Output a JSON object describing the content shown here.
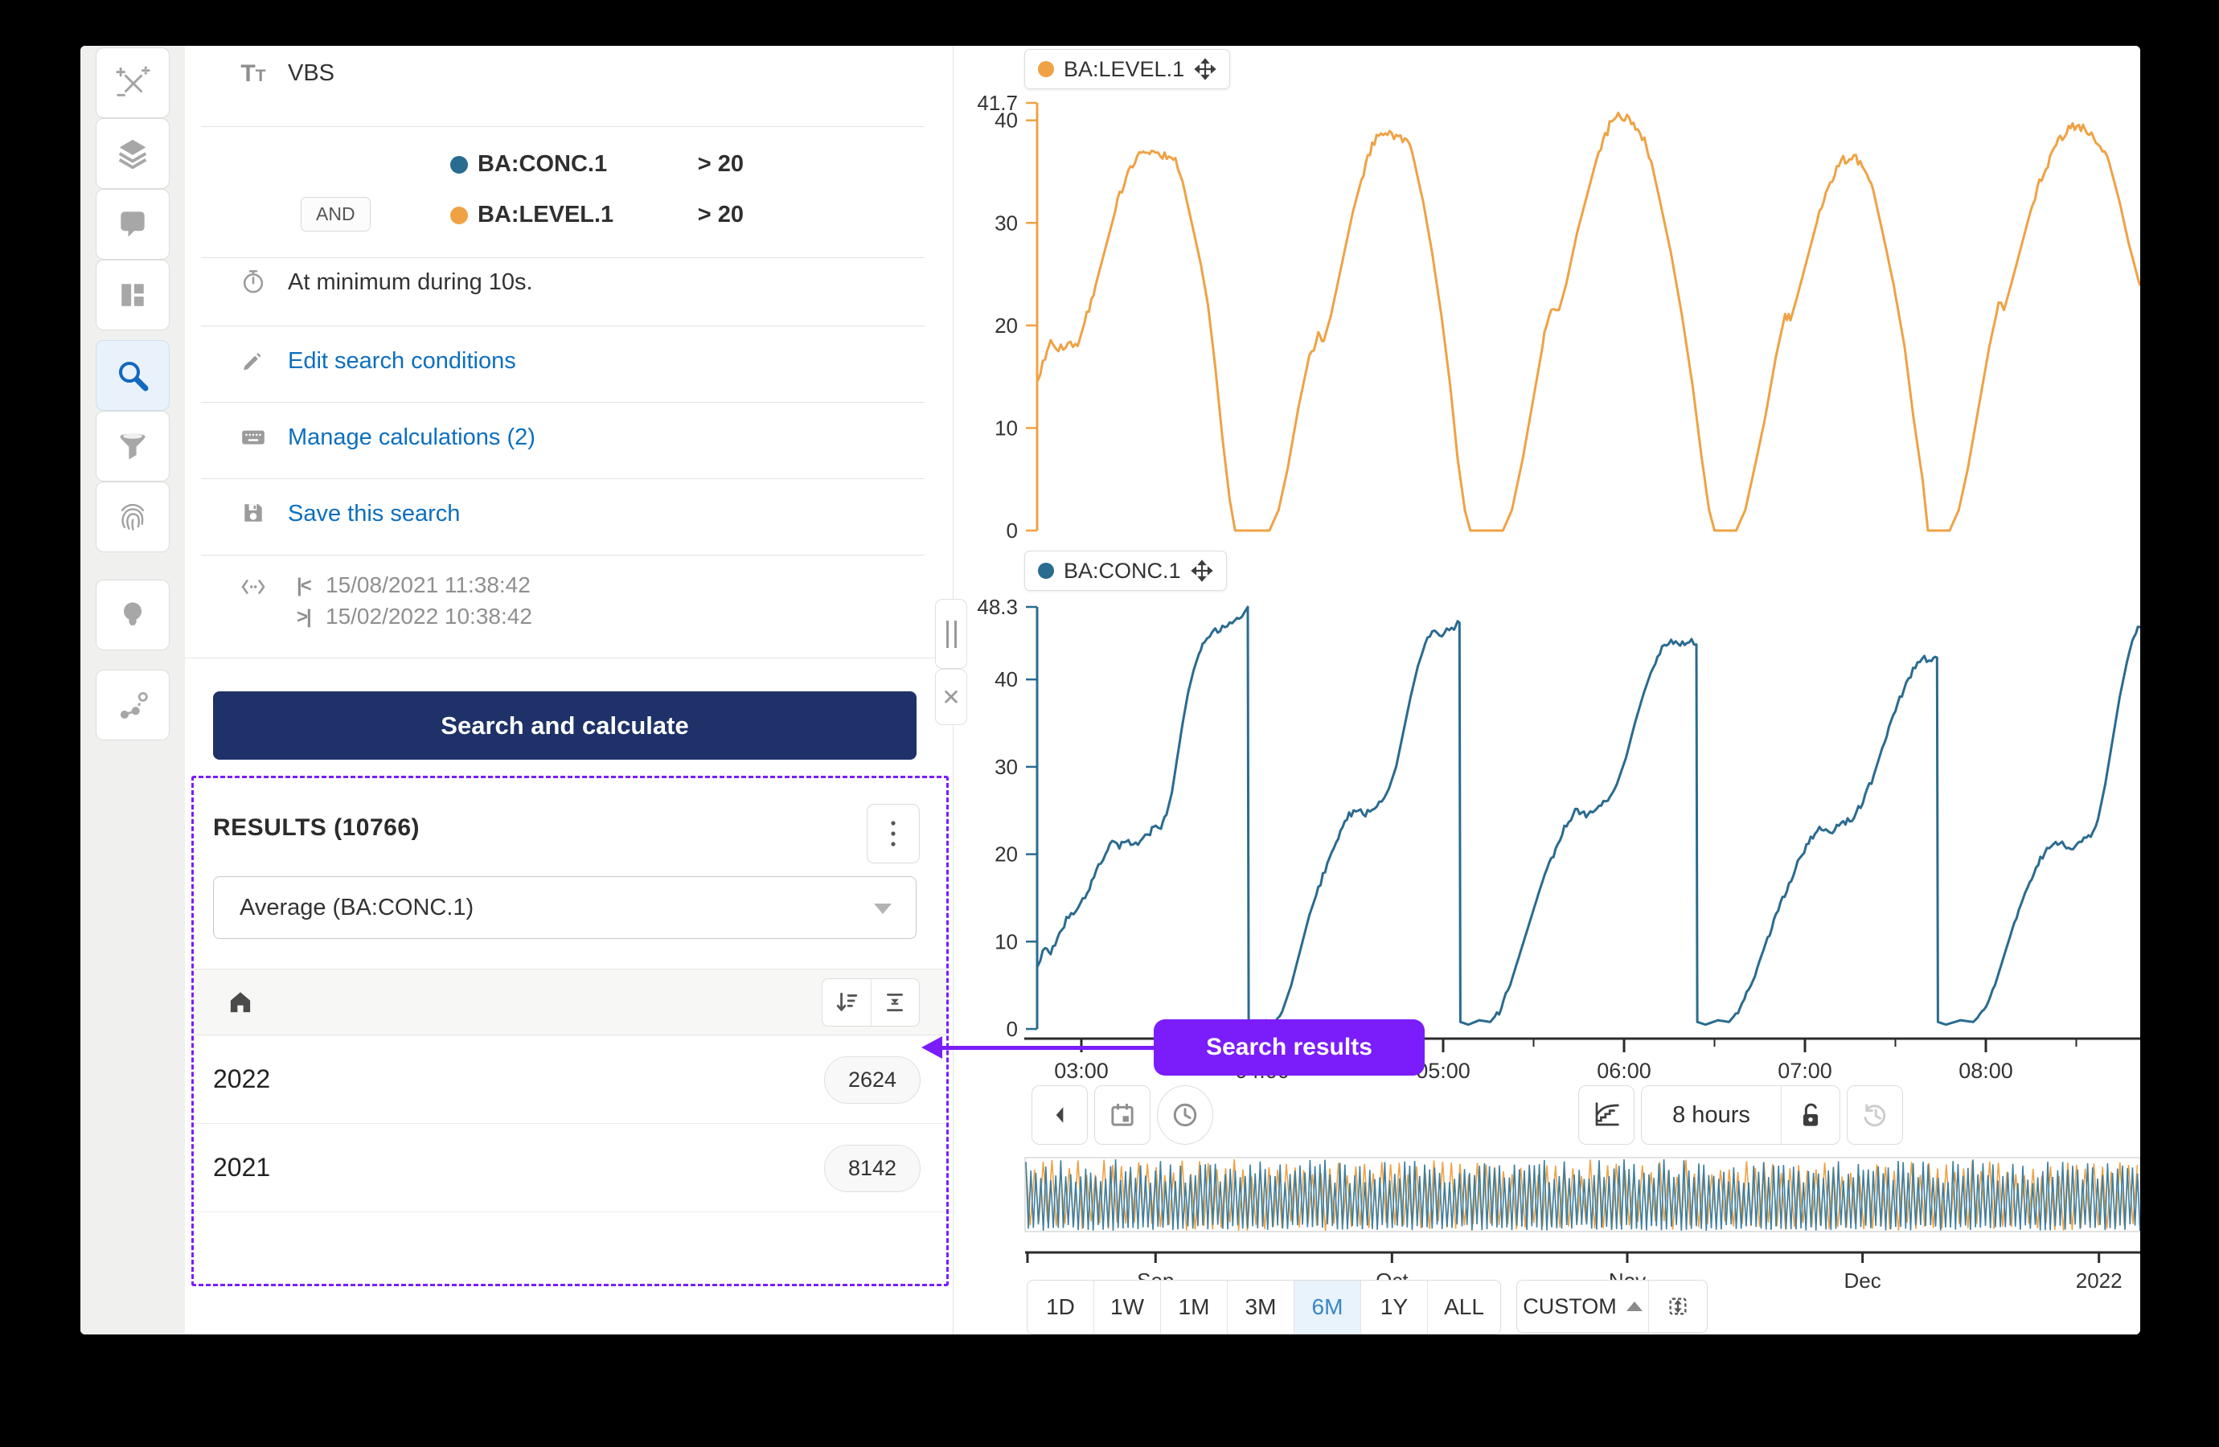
{
  "sidebar": {
    "items": [
      {
        "icon": "formula-icon",
        "active": false
      },
      {
        "icon": "layers-icon",
        "active": false
      },
      {
        "icon": "comment-icon",
        "active": false
      },
      {
        "icon": "dashboard-icon",
        "active": false
      },
      {
        "icon": "search-icon",
        "active": true
      },
      {
        "icon": "filter-icon",
        "active": false
      },
      {
        "icon": "fingerprint-icon",
        "active": false
      },
      {
        "icon": "lightbulb-icon",
        "active": false
      },
      {
        "icon": "node-graph-icon",
        "active": false
      }
    ]
  },
  "search_panel": {
    "query_name": "VBS",
    "conditions": [
      {
        "logic": "",
        "tag": "BA:CONC.1",
        "color": "#2a6b90",
        "condition": "> 20"
      },
      {
        "logic": "AND",
        "tag": "BA:LEVEL.1",
        "color": "#efa244",
        "condition": "> 20"
      }
    ],
    "duration_text": "At minimum during 10s.",
    "links": {
      "edit": "Edit search conditions",
      "manage": "Manage calculations (2)",
      "save": "Save this search"
    },
    "time_range": {
      "start": "15/08/2021 11:38:42",
      "end": "15/02/2022 10:38:42"
    },
    "search_button_label": "Search and calculate",
    "results": {
      "title": "RESULTS (10766)",
      "aggregation_selected": "Average (BA:CONC.1)",
      "rows": [
        {
          "label": "2022",
          "count": "2624"
        },
        {
          "label": "2021",
          "count": "8142"
        }
      ]
    }
  },
  "annotation": {
    "label": "Search results",
    "color": "#7b1dfa"
  },
  "toolbar": {
    "visible_span_label": "8 hours"
  },
  "timebar": {
    "presets": [
      "1D",
      "1W",
      "1M",
      "3M",
      "6M",
      "1Y",
      "ALL"
    ],
    "selected_preset": "6M",
    "custom_label": "CUSTOM"
  },
  "chart_data": {
    "type": "line",
    "time_axis": {
      "ticks": [
        "03:00",
        "04:00",
        "05:00",
        "06:00",
        "07:00",
        "08:00"
      ],
      "hours": [
        3,
        4,
        5,
        6,
        7,
        8
      ],
      "note": "x axis is time of day; visible window about 02:45 to 08:50"
    },
    "panels": [
      {
        "name": "BA:LEVEL.1",
        "color": "#efa244",
        "ylim": [
          0,
          41.7
        ],
        "yticks": [
          0,
          10,
          20,
          30,
          40
        ],
        "ymax_label": "41.7",
        "noise": 0.9,
        "points": [
          [
            2.76,
            15
          ],
          [
            2.8,
            17
          ],
          [
            2.83,
            18.5
          ],
          [
            2.86,
            17.5
          ],
          [
            2.9,
            18
          ],
          [
            2.94,
            18.5
          ],
          [
            2.98,
            18
          ],
          [
            3.03,
            21
          ],
          [
            3.08,
            24
          ],
          [
            3.14,
            28
          ],
          [
            3.2,
            32
          ],
          [
            3.26,
            35
          ],
          [
            3.32,
            36.5
          ],
          [
            3.4,
            37
          ],
          [
            3.46,
            36.5
          ],
          [
            3.52,
            36
          ],
          [
            3.56,
            34
          ],
          [
            3.61,
            30
          ],
          [
            3.66,
            26
          ],
          [
            3.7,
            22
          ],
          [
            3.74,
            16
          ],
          [
            3.78,
            9
          ],
          [
            3.82,
            3
          ],
          [
            3.85,
            0
          ],
          [
            4.04,
            0
          ],
          [
            4.09,
            2
          ],
          [
            4.14,
            6
          ],
          [
            4.2,
            12
          ],
          [
            4.26,
            17
          ],
          [
            4.31,
            19
          ],
          [
            4.34,
            18.5
          ],
          [
            4.38,
            21
          ],
          [
            4.44,
            26
          ],
          [
            4.5,
            31
          ],
          [
            4.56,
            35
          ],
          [
            4.62,
            38
          ],
          [
            4.68,
            39
          ],
          [
            4.74,
            38.5
          ],
          [
            4.8,
            38
          ],
          [
            4.84,
            36
          ],
          [
            4.89,
            32
          ],
          [
            4.94,
            27
          ],
          [
            4.99,
            21
          ],
          [
            5.04,
            14
          ],
          [
            5.08,
            7
          ],
          [
            5.12,
            2
          ],
          [
            5.15,
            0
          ],
          [
            5.33,
            0
          ],
          [
            5.38,
            2
          ],
          [
            5.44,
            7
          ],
          [
            5.5,
            13
          ],
          [
            5.56,
            19
          ],
          [
            5.61,
            22
          ],
          [
            5.64,
            21.5
          ],
          [
            5.68,
            24
          ],
          [
            5.74,
            29
          ],
          [
            5.8,
            33
          ],
          [
            5.86,
            37
          ],
          [
            5.92,
            39.5
          ],
          [
            5.98,
            40.5
          ],
          [
            6.04,
            40
          ],
          [
            6.1,
            38.5
          ],
          [
            6.15,
            36
          ],
          [
            6.2,
            32
          ],
          [
            6.26,
            27
          ],
          [
            6.32,
            21
          ],
          [
            6.38,
            14
          ],
          [
            6.43,
            7
          ],
          [
            6.47,
            2
          ],
          [
            6.5,
            0
          ],
          [
            6.62,
            0
          ],
          [
            6.67,
            2
          ],
          [
            6.72,
            6
          ],
          [
            6.78,
            11
          ],
          [
            6.84,
            17
          ],
          [
            6.89,
            21
          ],
          [
            6.92,
            20.5
          ],
          [
            6.96,
            23
          ],
          [
            7.02,
            27
          ],
          [
            7.08,
            31
          ],
          [
            7.14,
            34
          ],
          [
            7.2,
            36
          ],
          [
            7.27,
            36.5
          ],
          [
            7.33,
            35.5
          ],
          [
            7.38,
            33
          ],
          [
            7.43,
            29
          ],
          [
            7.49,
            24
          ],
          [
            7.55,
            18
          ],
          [
            7.6,
            11
          ],
          [
            7.65,
            5
          ],
          [
            7.68,
            0
          ],
          [
            7.8,
            0
          ],
          [
            7.85,
            2
          ],
          [
            7.9,
            6
          ],
          [
            7.96,
            12
          ],
          [
            8.02,
            18
          ],
          [
            8.07,
            22
          ],
          [
            8.1,
            21.5
          ],
          [
            8.14,
            24
          ],
          [
            8.2,
            28
          ],
          [
            8.26,
            32
          ],
          [
            8.32,
            35
          ],
          [
            8.4,
            38
          ],
          [
            8.48,
            39.5
          ],
          [
            8.56,
            39
          ],
          [
            8.62,
            38
          ],
          [
            8.68,
            36
          ],
          [
            8.74,
            32
          ],
          [
            8.79,
            28
          ],
          [
            8.85,
            24
          ]
        ]
      },
      {
        "name": "BA:CONC.1",
        "color": "#2a6b90",
        "ylim": [
          0,
          48.3
        ],
        "yticks": [
          0,
          10,
          20,
          30,
          40
        ],
        "ymax_label": "48.3",
        "noise": 0.7,
        "points": [
          [
            2.76,
            7.5
          ],
          [
            2.8,
            9.5
          ],
          [
            2.83,
            8.5
          ],
          [
            2.88,
            11
          ],
          [
            2.93,
            13
          ],
          [
            2.97,
            13.5
          ],
          [
            3.02,
            15
          ],
          [
            3.07,
            17.5
          ],
          [
            3.12,
            19.5
          ],
          [
            3.17,
            21.5
          ],
          [
            3.21,
            21
          ],
          [
            3.26,
            21.5
          ],
          [
            3.3,
            21
          ],
          [
            3.34,
            22
          ],
          [
            3.38,
            22.5
          ],
          [
            3.41,
            23.5
          ],
          [
            3.44,
            23
          ],
          [
            3.47,
            24.5
          ],
          [
            3.5,
            27
          ],
          [
            3.53,
            31
          ],
          [
            3.56,
            35
          ],
          [
            3.59,
            38.5
          ],
          [
            3.62,
            41
          ],
          [
            3.65,
            43
          ],
          [
            3.68,
            44.5
          ],
          [
            3.71,
            45
          ],
          [
            3.74,
            45.5
          ],
          [
            3.78,
            46
          ],
          [
            3.82,
            46.5
          ],
          [
            3.86,
            47
          ],
          [
            3.89,
            47.5
          ],
          [
            3.92,
            48.3
          ],
          [
            3.925,
            0.8
          ],
          [
            3.97,
            0.5
          ],
          [
            4.02,
            1
          ],
          [
            4.07,
            0.8
          ],
          [
            4.11,
            2
          ],
          [
            4.16,
            5
          ],
          [
            4.21,
            9
          ],
          [
            4.26,
            13
          ],
          [
            4.31,
            16
          ],
          [
            4.36,
            19
          ],
          [
            4.42,
            22
          ],
          [
            4.48,
            24.5
          ],
          [
            4.53,
            25
          ],
          [
            4.57,
            24.5
          ],
          [
            4.62,
            25.5
          ],
          [
            4.66,
            26
          ],
          [
            4.7,
            27.5
          ],
          [
            4.74,
            30
          ],
          [
            4.78,
            34
          ],
          [
            4.82,
            38
          ],
          [
            4.86,
            41.5
          ],
          [
            4.9,
            44
          ],
          [
            4.94,
            45.5
          ],
          [
            4.98,
            45
          ],
          [
            5.02,
            45.5
          ],
          [
            5.06,
            46
          ],
          [
            5.09,
            46.5
          ],
          [
            5.095,
            0.8
          ],
          [
            5.14,
            0.5
          ],
          [
            5.2,
            1
          ],
          [
            5.26,
            0.8
          ],
          [
            5.31,
            2
          ],
          [
            5.37,
            5
          ],
          [
            5.43,
            9
          ],
          [
            5.49,
            13
          ],
          [
            5.55,
            17
          ],
          [
            5.61,
            20
          ],
          [
            5.67,
            23
          ],
          [
            5.73,
            25
          ],
          [
            5.79,
            24.5
          ],
          [
            5.85,
            25.5
          ],
          [
            5.91,
            26
          ],
          [
            5.96,
            28
          ],
          [
            6.01,
            31
          ],
          [
            6.06,
            35
          ],
          [
            6.11,
            38.5
          ],
          [
            6.16,
            41.5
          ],
          [
            6.21,
            43.5
          ],
          [
            6.26,
            44.5
          ],
          [
            6.31,
            44
          ],
          [
            6.36,
            44.5
          ],
          [
            6.4,
            44
          ],
          [
            6.405,
            0.8
          ],
          [
            6.45,
            0.5
          ],
          [
            6.52,
            1
          ],
          [
            6.58,
            0.8
          ],
          [
            6.63,
            2
          ],
          [
            6.7,
            5
          ],
          [
            6.77,
            9
          ],
          [
            6.84,
            13
          ],
          [
            6.9,
            16
          ],
          [
            6.96,
            19
          ],
          [
            7.02,
            21.5
          ],
          [
            7.08,
            23
          ],
          [
            7.14,
            22.5
          ],
          [
            7.2,
            23.5
          ],
          [
            7.26,
            24
          ],
          [
            7.32,
            26
          ],
          [
            7.38,
            29
          ],
          [
            7.44,
            33
          ],
          [
            7.5,
            36.5
          ],
          [
            7.56,
            39.5
          ],
          [
            7.61,
            41.5
          ],
          [
            7.66,
            42.5
          ],
          [
            7.7,
            42
          ],
          [
            7.73,
            42.5
          ],
          [
            7.735,
            0.8
          ],
          [
            7.78,
            0.5
          ],
          [
            7.86,
            1
          ],
          [
            7.93,
            0.8
          ],
          [
            7.99,
            2
          ],
          [
            8.05,
            5
          ],
          [
            8.11,
            9
          ],
          [
            8.17,
            13
          ],
          [
            8.23,
            16
          ],
          [
            8.29,
            19
          ],
          [
            8.35,
            21
          ],
          [
            8.41,
            21.5
          ],
          [
            8.47,
            20.5
          ],
          [
            8.53,
            21.5
          ],
          [
            8.58,
            22
          ],
          [
            8.62,
            24
          ],
          [
            8.66,
            28
          ],
          [
            8.7,
            33
          ],
          [
            8.74,
            38
          ],
          [
            8.78,
            42
          ],
          [
            8.81,
            44.5
          ],
          [
            8.83,
            45.5
          ],
          [
            8.85,
            46
          ]
        ]
      }
    ],
    "overview": {
      "description": "context bar showing both tags oscillating densely over Aug 2021 - Feb 2022",
      "series": [
        "BA:CONC.1",
        "BA:LEVEL.1"
      ],
      "colors": [
        "#3d7ea0",
        "#efa244"
      ],
      "x_ticks": [
        {
          "label": "Sep",
          "pos": 0.117
        },
        {
          "label": "Oct",
          "pos": 0.329
        },
        {
          "label": "Nov",
          "pos": 0.54
        },
        {
          "label": "Dec",
          "pos": 0.751
        },
        {
          "label": "2022",
          "pos": 0.963
        }
      ]
    }
  }
}
